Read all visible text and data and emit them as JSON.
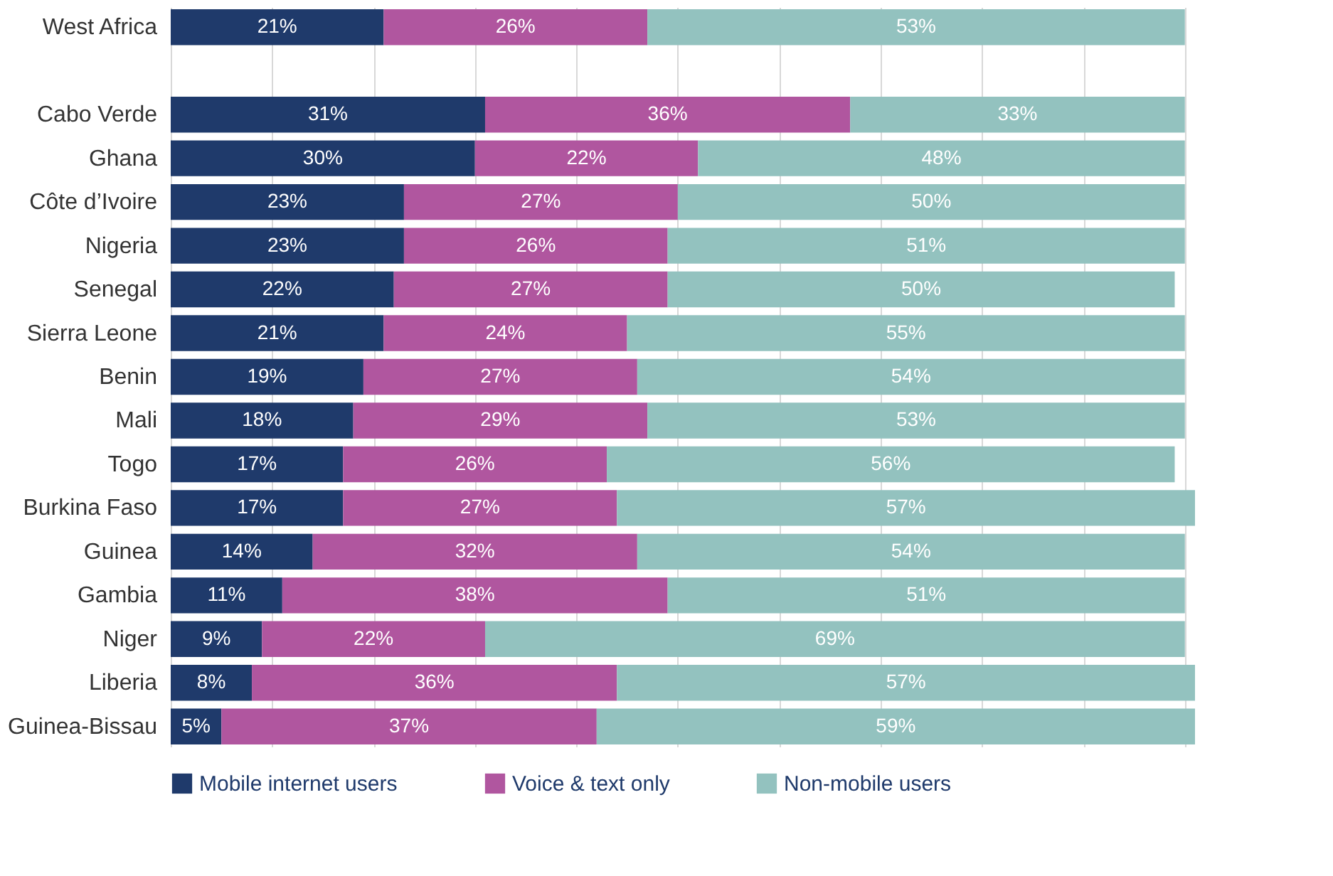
{
  "chart_data": {
    "type": "bar",
    "orientation": "horizontal",
    "stacked": true,
    "legend": "bottom",
    "grid": "x",
    "tick_labels": "y",
    "categories": [
      "West Africa",
      null,
      "Cabo Verde",
      "Ghana",
      "Côte d’Ivoire",
      "Nigeria",
      "Senegal",
      "Sierra Leone",
      "Benin",
      "Mali",
      "Togo",
      "Burkina Faso",
      "Guinea",
      "Gambia",
      "Niger",
      "Liberia",
      "Guinea-Bissau"
    ],
    "xlim": [
      0,
      101
    ],
    "xticks": [
      {
        "value": 0,
        "label": null
      },
      {
        "value": 10,
        "label": null
      },
      {
        "value": 20,
        "label": null
      },
      {
        "value": 30,
        "label": null
      },
      {
        "value": 40,
        "label": null
      },
      {
        "value": 50,
        "label": null
      },
      {
        "value": 60,
        "label": null
      },
      {
        "value": 70,
        "label": null
      },
      {
        "value": 80,
        "label": null
      },
      {
        "value": 90,
        "label": null
      },
      {
        "value": 100,
        "label": null
      }
    ],
    "series": [
      {
        "name": "Mobile internet users",
        "color": "#1f3a6b",
        "values": [
          21,
          null,
          31,
          30,
          23,
          23,
          22,
          21,
          19,
          18,
          17,
          17,
          14,
          11,
          9,
          8,
          5
        ],
        "value_labels": [
          "21%",
          null,
          "31%",
          "30%",
          "23%",
          "23%",
          "22%",
          "21%",
          "19%",
          "18%",
          "17%",
          "17%",
          "14%",
          "11%",
          "9%",
          "8%",
          "5%"
        ]
      },
      {
        "name": "Voice & text only",
        "color": "#b0569f",
        "values": [
          26,
          null,
          36,
          22,
          27,
          26,
          27,
          24,
          27,
          29,
          26,
          27,
          32,
          38,
          22,
          36,
          37
        ],
        "value_labels": [
          "26%",
          null,
          "36%",
          "22%",
          "27%",
          "26%",
          "27%",
          "24%",
          "27%",
          "29%",
          "26%",
          "27%",
          "32%",
          "38%",
          "22%",
          "36%",
          "37%"
        ]
      },
      {
        "name": "Non-mobile users",
        "color": "#93c2bf",
        "values": [
          53,
          null,
          33,
          48,
          50,
          51,
          50,
          55,
          54,
          53,
          56,
          57,
          54,
          51,
          69,
          57,
          59
        ],
        "value_labels": [
          "53%",
          null,
          "33%",
          "48%",
          "50%",
          "51%",
          "50%",
          "55%",
          "54%",
          "53%",
          "56%",
          "57%",
          "54%",
          "51%",
          "69%",
          "57%",
          "59%"
        ]
      }
    ]
  }
}
